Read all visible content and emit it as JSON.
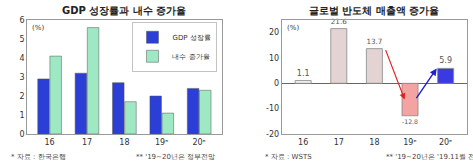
{
  "chart_data": [
    {
      "type": "bar",
      "title": "GDP 성장률과 내수 증가율",
      "ylabel": "(%)",
      "categories": [
        "16",
        "17",
        "18",
        "19ᵉ",
        "20ᵉ"
      ],
      "series": [
        {
          "name": "GDP 성장률",
          "color": "#2b3fd6",
          "values": [
            2.9,
            3.2,
            2.7,
            2.0,
            2.4
          ]
        },
        {
          "name": "내수 증가율",
          "color": "#9fe8c4",
          "values": [
            4.1,
            5.6,
            1.7,
            1.1,
            2.3
          ]
        }
      ],
      "ylim": [
        0,
        6
      ],
      "yticks": [
        0,
        1,
        2,
        3,
        4,
        5,
        6
      ],
      "grid": false,
      "legend": "upper right",
      "annotations": [
        "* 자료 : 한국은행",
        "** '19~20년은 정부전망"
      ]
    },
    {
      "type": "bar",
      "title": "글로벌 반도체 매출액 증가율",
      "ylabel": "(%)",
      "categories": [
        "16",
        "17",
        "18",
        "19ᵉ",
        "20ᵉ"
      ],
      "values": [
        1.1,
        21.6,
        13.7,
        -12.8,
        5.9
      ],
      "colors": [
        "#f4f0f0",
        "#e3d3d3",
        "#e3d3d3",
        "#f4a3a3",
        "#3a3ae0"
      ],
      "data_labels": true,
      "ylim": [
        -20,
        25
      ],
      "yticks": [
        -20,
        -10,
        0,
        10,
        20
      ],
      "grid": false,
      "annotations": [
        "* 자료 : WSTS",
        "** '19~20년은 '19.11월 전망"
      ]
    }
  ]
}
